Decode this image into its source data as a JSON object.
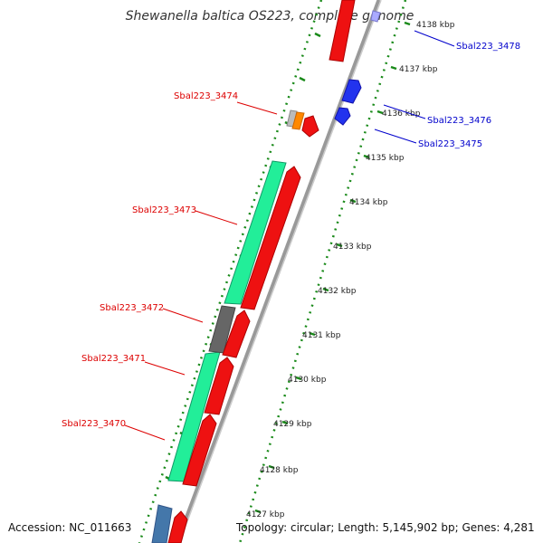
{
  "title": "Shewanella baltica OS223, complete genome",
  "footer": {
    "accession": "Accession: NC_011663",
    "topology": "Topology: circular; Length: 5,145,902 bp; Genes: 4,281"
  },
  "colors": {
    "tick": "#1a8a1a",
    "red_gene": "#ee1111",
    "teal_gene": "#22ee99",
    "blue_gene": "#2233ee",
    "gray_gene": "#666666",
    "label_red": "#dd0000",
    "label_blue": "#0000cc"
  },
  "tick_labels": [
    "4138 kbp",
    "4137 kbp",
    "4136 kbp",
    "4135 kbp",
    "4134 kbp",
    "4133 kbp",
    "4132 kbp",
    "4131 kbp",
    "4130 kbp",
    "4129 kbp",
    "4128 kbp",
    "4127 kbp"
  ],
  "gene_labels": {
    "left": [
      "Sbal223_3474",
      "Sbal223_3473",
      "Sbal223_3472",
      "Sbal223_3471",
      "Sbal223_3470"
    ],
    "right": [
      "Sbal223_3478",
      "Sbal223_3476",
      "Sbal223_3475"
    ]
  }
}
